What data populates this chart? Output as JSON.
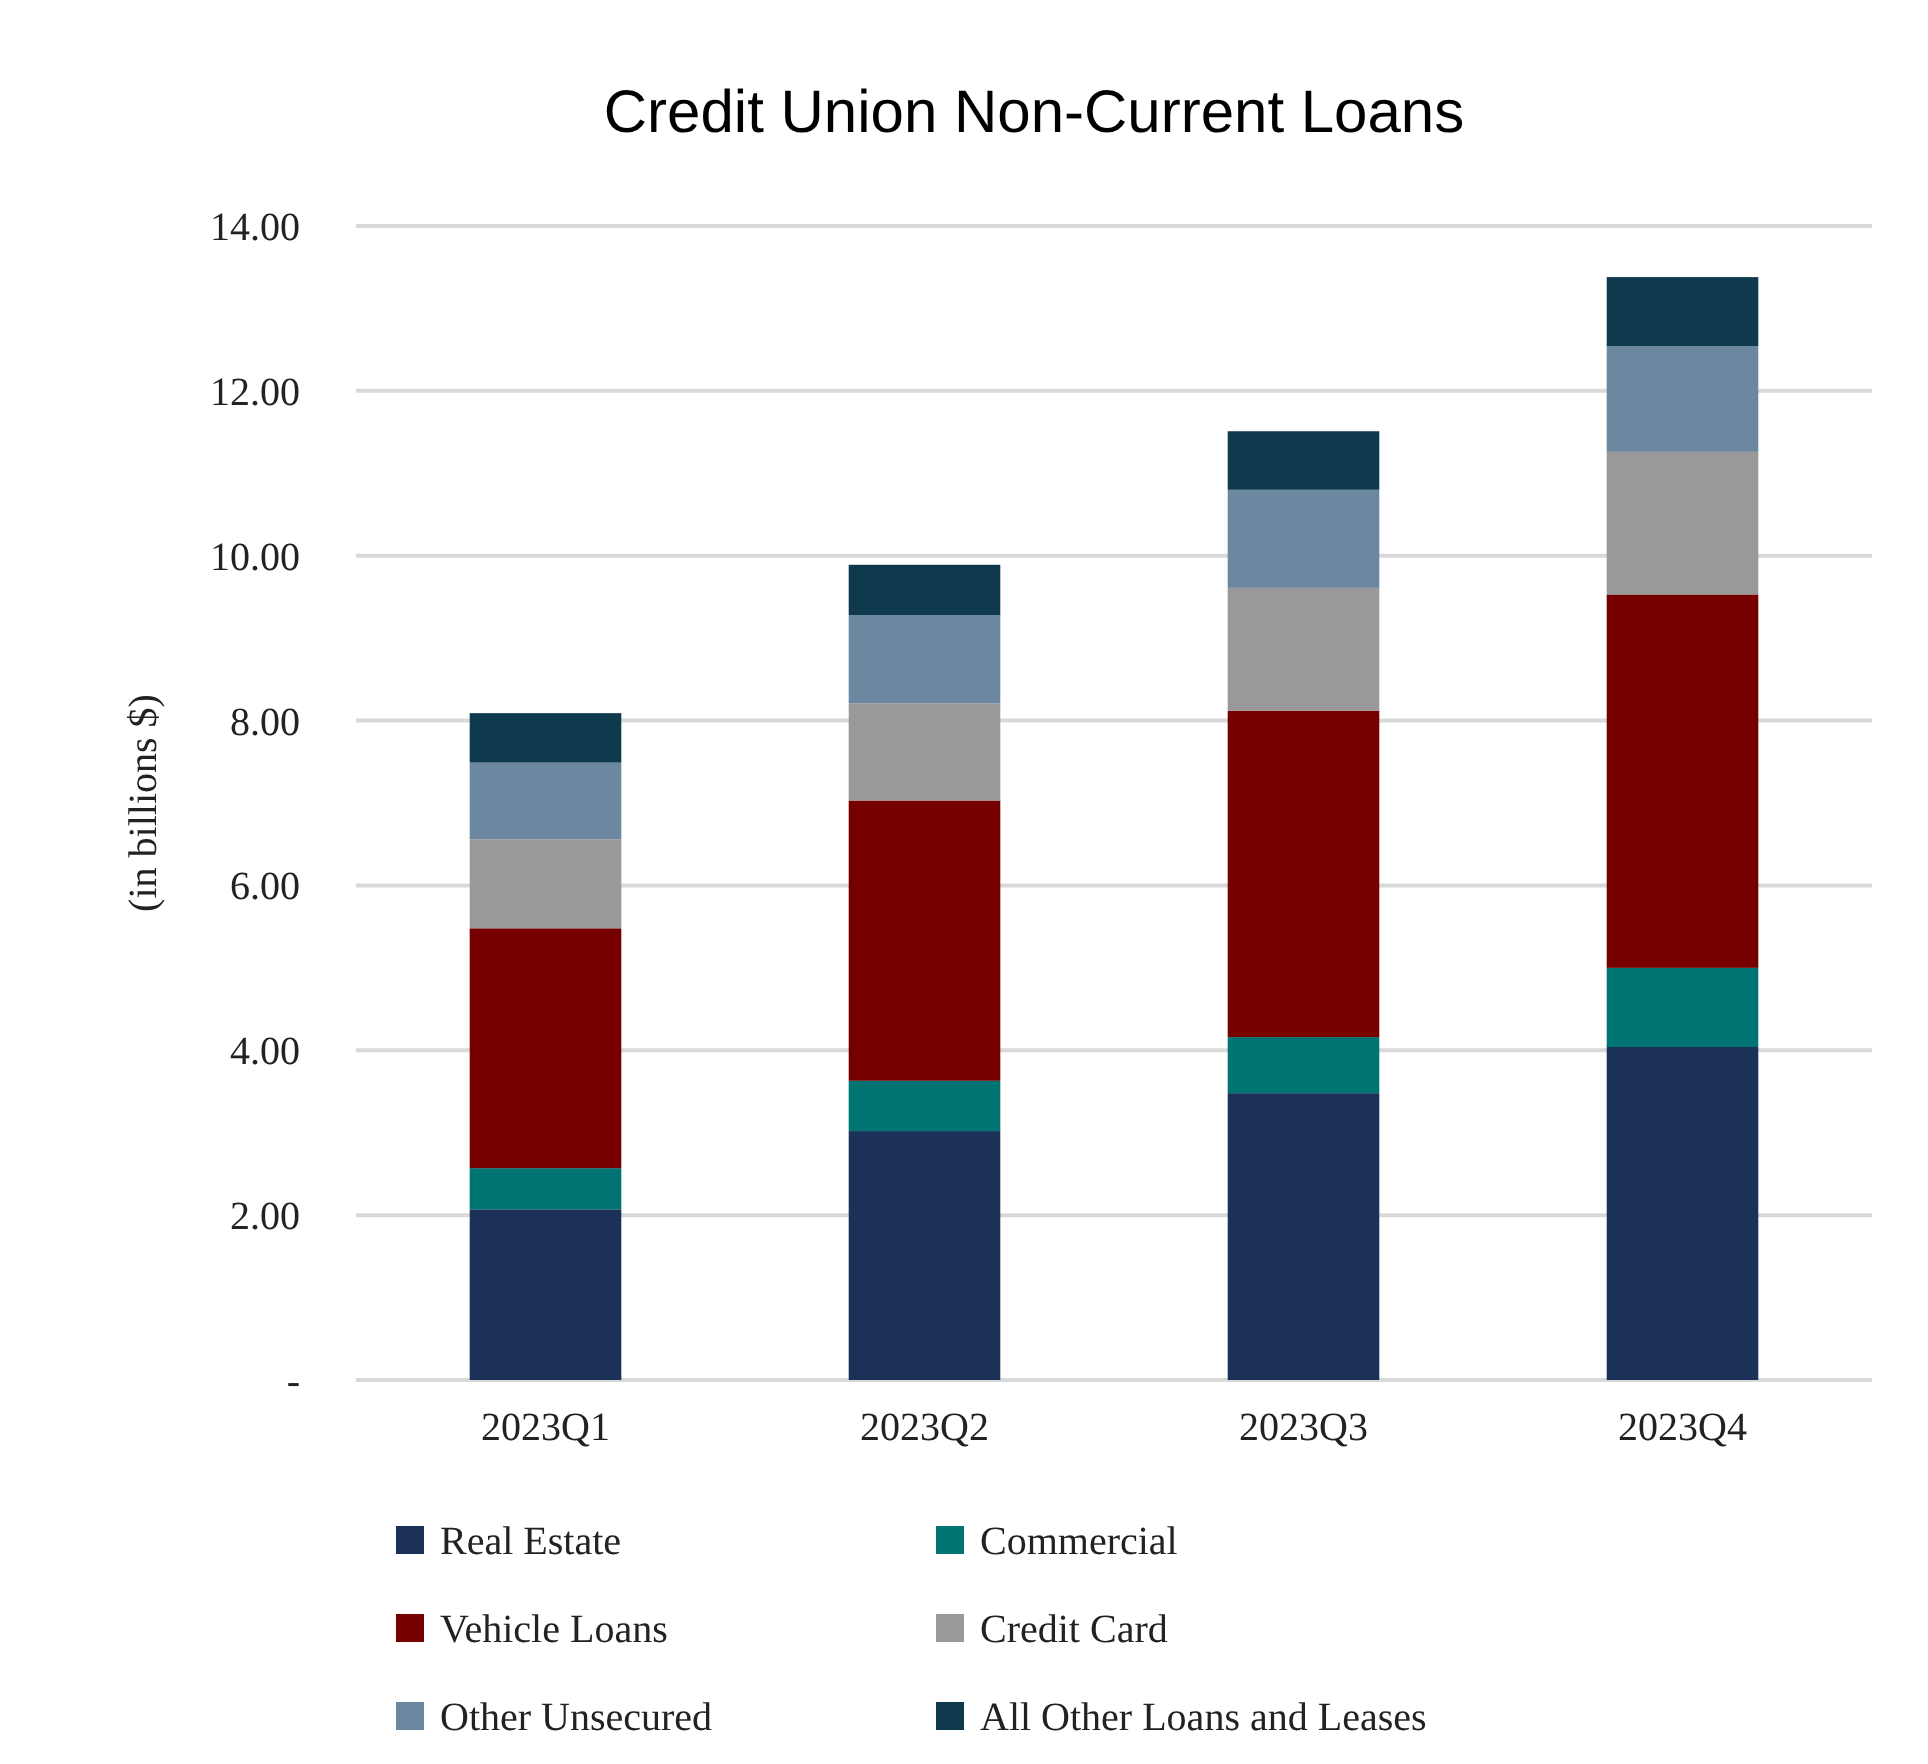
{
  "chart_data": {
    "type": "bar",
    "stacked": true,
    "title": "Credit Union Non-Current Loans",
    "ylabel": "(in billions $)",
    "categories": [
      "2023Q1",
      "2023Q2",
      "2023Q3",
      "2023Q4"
    ],
    "series": [
      {
        "name": "Real Estate",
        "color": "#1b3158",
        "values": [
          2.07,
          3.02,
          3.48,
          4.04
        ]
      },
      {
        "name": "Commercial",
        "color": "#007472",
        "values": [
          0.5,
          0.61,
          0.68,
          0.96
        ]
      },
      {
        "name": "Vehicle Loans",
        "color": "#760000",
        "values": [
          2.91,
          3.4,
          3.96,
          4.53
        ]
      },
      {
        "name": "Credit Card",
        "color": "#999999",
        "values": [
          1.08,
          1.18,
          1.49,
          1.73
        ]
      },
      {
        "name": "Other Unsecured",
        "color": "#6c88a0",
        "values": [
          0.93,
          1.07,
          1.19,
          1.28
        ]
      },
      {
        "name": "All Other Loans and Leases",
        "color": "#0f394d",
        "values": [
          0.6,
          0.61,
          0.71,
          0.84
        ]
      }
    ],
    "ylim": [
      0,
      14
    ],
    "yticks": [
      {
        "value": 0,
        "label": "-"
      },
      {
        "value": 2,
        "label": "2.00"
      },
      {
        "value": 4,
        "label": "4.00"
      },
      {
        "value": 6,
        "label": "6.00"
      },
      {
        "value": 8,
        "label": "8.00"
      },
      {
        "value": 10,
        "label": "10.00"
      },
      {
        "value": 12,
        "label": "12.00"
      },
      {
        "value": 14,
        "label": "14.00"
      }
    ],
    "grid": "y",
    "legend": "bottom"
  }
}
